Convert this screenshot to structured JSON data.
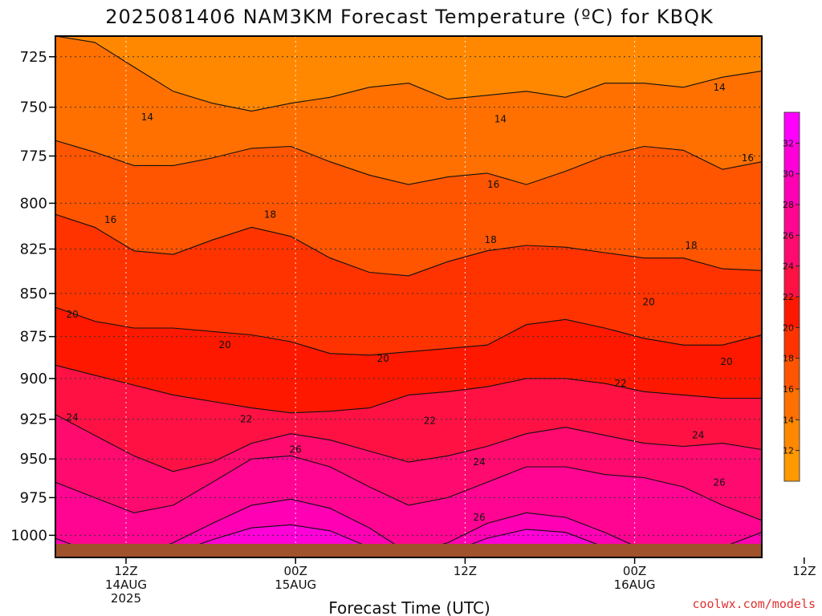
{
  "chart_data": {
    "type": "heatmap",
    "title": "2025081406 NAM3KM Forecast Temperature (ºC) for KBQK",
    "xlabel": "Forecast Time (UTC)",
    "ylabel": "",
    "credit": "coolwx.com/models",
    "y_axis": {
      "scale": "log-pressure",
      "range_hpa": [
        715,
        1015
      ],
      "inverted": true,
      "ticks": [
        725,
        750,
        775,
        800,
        825,
        850,
        875,
        900,
        925,
        950,
        975,
        1000
      ]
    },
    "x_axis": {
      "range_hours": [
        -5,
        45
      ],
      "ticks": [
        {
          "hour": 0,
          "line1": "12Z",
          "line2": "14AUG",
          "line3": "2025"
        },
        {
          "hour": 12,
          "line1": "00Z",
          "line2": "15AUG",
          "line3": ""
        },
        {
          "hour": 24,
          "line1": "12Z",
          "line2": "",
          "line3": ""
        },
        {
          "hour": 36,
          "line1": "00Z",
          "line2": "16AUG",
          "line3": ""
        },
        {
          "hour": 48,
          "line1": "12Z",
          "line2": "",
          "line3": ""
        }
      ]
    },
    "grid": true,
    "colorbar": {
      "ticks": [
        12,
        14,
        16,
        18,
        20,
        22,
        24,
        26,
        28,
        30,
        32
      ],
      "range": [
        10,
        34
      ],
      "colors": [
        {
          "lo": 10,
          "hi": 12,
          "color": "#ff9900"
        },
        {
          "lo": 12,
          "hi": 14,
          "color": "#ff8800"
        },
        {
          "lo": 14,
          "hi": 16,
          "color": "#ff7000"
        },
        {
          "lo": 16,
          "hi": 18,
          "color": "#ff5500"
        },
        {
          "lo": 18,
          "hi": 20,
          "color": "#ff3300"
        },
        {
          "lo": 20,
          "hi": 22,
          "color": "#ff1800"
        },
        {
          "lo": 22,
          "hi": 24,
          "color": "#ff1144"
        },
        {
          "lo": 24,
          "hi": 26,
          "color": "#ff0a6e"
        },
        {
          "lo": 26,
          "hi": 28,
          "color": "#ff0591"
        },
        {
          "lo": 28,
          "hi": 30,
          "color": "#ff00b4"
        },
        {
          "lo": 30,
          "hi": 32,
          "color": "#ff00d8"
        },
        {
          "lo": 32,
          "hi": 34,
          "color": "#ff00ff"
        }
      ]
    },
    "ground_color": "#a0522d",
    "isotherms": [
      {
        "value": 14,
        "pressure_hpa": [
          715,
          718,
          730,
          742,
          748,
          752,
          748,
          745,
          740,
          738,
          746,
          744,
          742,
          745,
          738,
          738,
          740,
          735,
          732
        ],
        "labels": [
          {
            "hour": 1.5,
            "pressure": 755
          },
          {
            "hour": 26.5,
            "pressure": 756
          },
          {
            "hour": 42,
            "pressure": 740
          }
        ]
      },
      {
        "value": 16,
        "pressure_hpa": [
          767,
          773,
          780,
          780,
          776,
          771,
          770,
          778,
          785,
          790,
          786,
          784,
          790,
          783,
          775,
          770,
          772,
          782,
          778
        ],
        "labels": [
          {
            "hour": -1.1,
            "pressure": 809
          },
          {
            "hour": 26,
            "pressure": 790
          },
          {
            "hour": 44,
            "pressure": 776
          }
        ]
      },
      {
        "value": 18,
        "pressure_hpa": [
          806,
          813,
          826,
          828,
          820,
          813,
          818,
          830,
          838,
          840,
          832,
          826,
          823,
          824,
          827,
          830,
          830,
          836,
          837
        ],
        "labels": [
          {
            "hour": 10.2,
            "pressure": 806
          },
          {
            "hour": 25.8,
            "pressure": 820
          },
          {
            "hour": 40,
            "pressure": 823
          },
          {
            "hour": 47.2,
            "pressure": 858
          }
        ]
      },
      {
        "value": 20,
        "pressure_hpa": [
          858,
          866,
          870,
          870,
          872,
          874,
          878,
          885,
          886,
          884,
          882,
          880,
          868,
          865,
          870,
          876,
          880,
          880,
          874
        ],
        "labels": [
          {
            "hour": -3.8,
            "pressure": 862
          },
          {
            "hour": 7,
            "pressure": 880
          },
          {
            "hour": 18.2,
            "pressure": 888
          },
          {
            "hour": 37,
            "pressure": 855
          },
          {
            "hour": 42.5,
            "pressure": 890
          }
        ]
      },
      {
        "value": 22,
        "pressure_hpa": [
          892,
          898,
          904,
          910,
          914,
          918,
          921,
          920,
          918,
          910,
          908,
          905,
          900,
          900,
          903,
          908,
          910,
          912,
          912
        ],
        "labels": [
          {
            "hour": 8.5,
            "pressure": 925
          },
          {
            "hour": 21.5,
            "pressure": 926
          },
          {
            "hour": 35,
            "pressure": 903
          }
        ]
      },
      {
        "value": 24,
        "pressure_hpa": [
          922,
          935,
          948,
          958,
          952,
          940,
          934,
          938,
          945,
          952,
          948,
          942,
          934,
          930,
          935,
          940,
          942,
          940,
          944
        ],
        "labels": [
          {
            "hour": -3.8,
            "pressure": 924
          },
          {
            "hour": 25,
            "pressure": 952
          },
          {
            "hour": 40.5,
            "pressure": 935
          }
        ]
      },
      {
        "value": 26,
        "pressure_hpa": [
          965,
          975,
          985,
          980,
          965,
          950,
          948,
          955,
          968,
          980,
          975,
          965,
          955,
          955,
          960,
          962,
          968,
          980,
          990
        ],
        "labels": [
          {
            "hour": 12,
            "pressure": 944
          },
          {
            "hour": 25,
            "pressure": 988
          },
          {
            "hour": 42,
            "pressure": 965
          }
        ]
      },
      {
        "value": 28,
        "pressure_hpa": [
          1002,
          1012,
          1015,
          1005,
          992,
          980,
          976,
          982,
          995,
          1012,
          1005,
          992,
          985,
          988,
          998,
          1010,
          1015,
          1008,
          998
        ],
        "labels": []
      },
      {
        "value": 30,
        "pressure_hpa": [
          1016,
          1017,
          1017,
          1012,
          1003,
          995,
          993,
          997,
          1008,
          1017,
          1012,
          1002,
          996,
          998,
          1008,
          1017,
          1017,
          1016,
          1012
        ],
        "labels": []
      }
    ]
  }
}
